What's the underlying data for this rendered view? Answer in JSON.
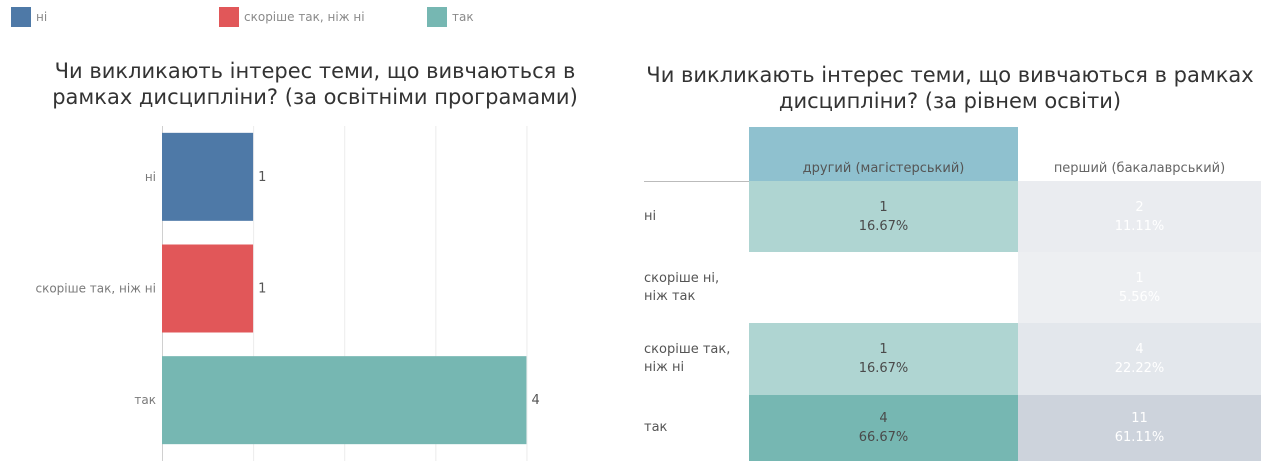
{
  "legend": [
    {
      "label": "ні",
      "color": "#4e79a7"
    },
    {
      "label": "скоріше так, ніж ні",
      "color": "#e15759"
    },
    {
      "label": "так",
      "color": "#76b7b2"
    }
  ],
  "chart_data": [
    {
      "type": "bar",
      "orientation": "horizontal",
      "title": "Чи викликають інтерес теми, що вивчаються в рамках дисципліни? (за освітніми програмами)",
      "categories": [
        "ні",
        "скоріше так, ніж ні",
        "так"
      ],
      "values": [
        1,
        1,
        4
      ],
      "colors": [
        "#4e79a7",
        "#e15759",
        "#76b7b2"
      ],
      "xlim": [
        0,
        4.5
      ],
      "grid": true
    },
    {
      "type": "table",
      "title": "Чи викликають інтерес теми, що вивчаються в рамках дисципліни? (за рівнем освіти)",
      "columns": [
        "другий (магістерський)",
        "перший (бакалаврський)"
      ],
      "rows": [
        "ні",
        "скоріше ні, ніж так",
        "скоріше так, ніж ні",
        "так"
      ],
      "counts": [
        [
          1,
          2
        ],
        [
          null,
          1
        ],
        [
          1,
          4
        ],
        [
          4,
          11
        ]
      ],
      "percents": [
        [
          "16.67%",
          "11.11%"
        ],
        [
          "",
          "5.56%"
        ],
        [
          "16.67%",
          "22.22%"
        ],
        [
          "66.67%",
          "61.11%"
        ]
      ],
      "highlight_column": 0,
      "highlight_color": "#76b7b2"
    }
  ]
}
